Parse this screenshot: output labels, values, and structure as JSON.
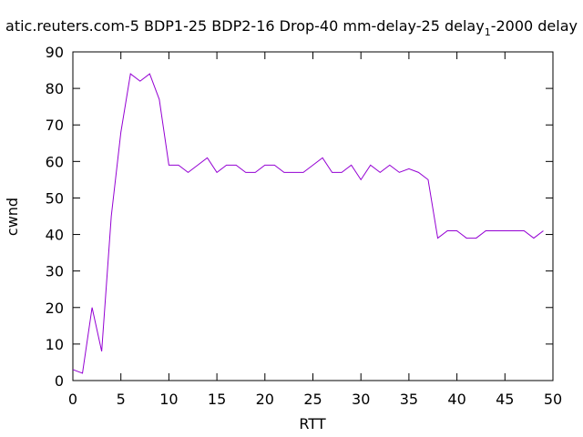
{
  "chart_data": {
    "type": "line",
    "title_main": "atic.reuters.com-5 BDP1-25 BDP2-16 Drop-40 mm-delay-25 delay",
    "title_sub": "1",
    "title_tail": "-2000 delay",
    "xlabel": "RTT",
    "ylabel": "cwnd",
    "xlim": [
      0,
      50
    ],
    "ylim": [
      0,
      90
    ],
    "xticks": [
      "0",
      "5",
      "10",
      "15",
      "20",
      "25",
      "30",
      "35",
      "40",
      "45",
      "50"
    ],
    "yticks": [
      "0",
      "10",
      "20",
      "30",
      "40",
      "50",
      "60",
      "70",
      "80",
      "90"
    ],
    "grid": false,
    "legend": "none",
    "series_color": "#9400d3",
    "series": [
      {
        "x": [
          0,
          1,
          2,
          3,
          4,
          5,
          6,
          7,
          8,
          9,
          10,
          11,
          12,
          13,
          14,
          15,
          16,
          17,
          18,
          19,
          20,
          21,
          22,
          23,
          24,
          25,
          26,
          27,
          28,
          29,
          30,
          31,
          32,
          33,
          34,
          35,
          36,
          37,
          38,
          39,
          40,
          41,
          42,
          43,
          44,
          45,
          46,
          47,
          48,
          49
        ],
        "y": [
          3,
          2,
          20,
          8,
          45,
          68,
          84,
          82,
          84,
          77,
          59,
          59,
          57,
          59,
          61,
          57,
          59,
          59,
          57,
          57,
          59,
          59,
          57,
          57,
          57,
          59,
          61,
          57,
          57,
          59,
          55,
          59,
          57,
          59,
          57,
          58,
          57,
          55,
          39,
          41,
          41,
          39,
          39,
          41,
          41,
          41,
          41,
          41,
          39,
          41
        ]
      }
    ]
  }
}
